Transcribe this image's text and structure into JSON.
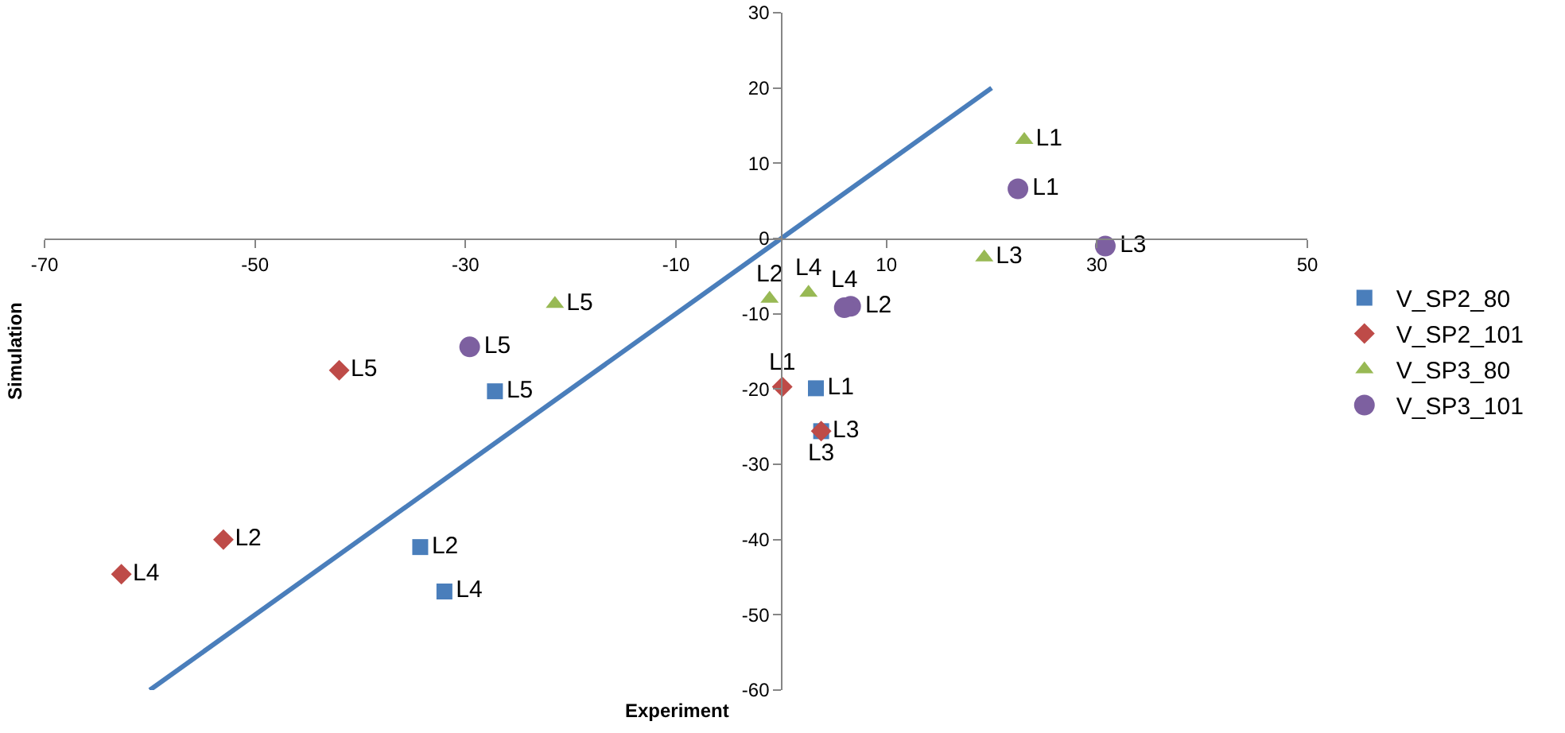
{
  "chart_data": {
    "type": "scatter",
    "xlabel": "Experiment",
    "ylabel": "Simulation",
    "xlim": [
      -70,
      50
    ],
    "xticks": [
      -70,
      -50,
      -30,
      -10,
      10,
      30,
      50
    ],
    "ylim": [
      -60,
      30
    ],
    "yticks": [
      -60,
      -50,
      -40,
      -30,
      -20,
      -10,
      0,
      10,
      20,
      30
    ],
    "grid": false,
    "legend": "right",
    "series": [
      {
        "name": "V_SP2_80",
        "color": "#4a7ebb",
        "marker": "square",
        "x": [
          3.3,
          -34.3,
          3.8,
          -32,
          -27.2
        ],
        "values": [
          -19.9,
          -41,
          -25.6,
          -46.9,
          -20.3
        ],
        "value_labels": [
          "L1",
          "L2",
          "L3",
          "L4",
          "L5"
        ]
      },
      {
        "name": "V_SP2_101",
        "color": "#be4b48",
        "marker": "diamond",
        "x": [
          0.1,
          -53,
          3.8,
          -62.7,
          -42
        ],
        "values": [
          -19.7,
          -40,
          -25.6,
          -44.6,
          -17.5
        ],
        "value_labels": [
          "L1",
          "L2",
          "L3",
          "L4",
          "L5"
        ]
      },
      {
        "name": "V_SP3_80",
        "color": "#98b954",
        "marker": "triangle",
        "x": [
          23.1,
          -1.1,
          19.3,
          2.6,
          -21.5
        ],
        "values": [
          13.1,
          -8,
          -2.5,
          -7.2,
          -8.7
        ],
        "value_labels": [
          "L1",
          "L2",
          "L3",
          "L4",
          "L5"
        ]
      },
      {
        "name": "V_SP3_101",
        "color": "#7d60a0",
        "marker": "circle",
        "x": [
          22.5,
          6.6,
          30.8,
          6,
          -29.6
        ],
        "values": [
          6.6,
          -9,
          -1,
          -9.2,
          -14.4
        ],
        "value_labels": [
          "L1",
          "L2",
          "L3",
          "L4",
          "L5"
        ]
      },
      {
        "type": "line",
        "color": "#4a7ebb",
        "marker": "none",
        "line_style": "solid",
        "x": [
          -60,
          20
        ],
        "values": [
          -60,
          20
        ]
      }
    ]
  }
}
